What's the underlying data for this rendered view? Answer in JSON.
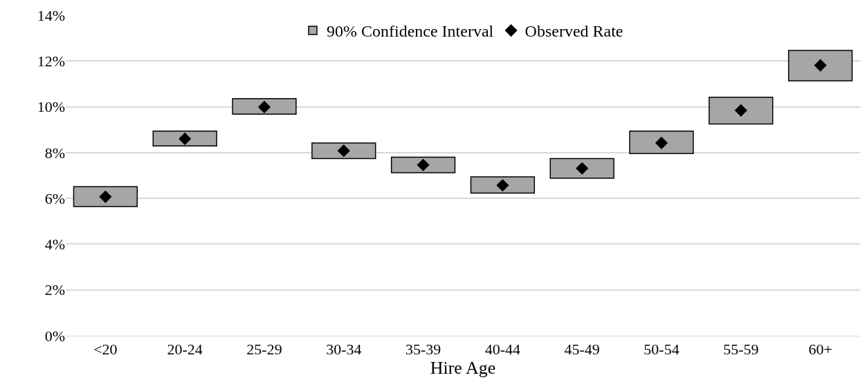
{
  "chart_data": {
    "type": "bar",
    "xlabel": "Hire Age",
    "categories": [
      "<20",
      "20-24",
      "25-29",
      "30-34",
      "35-39",
      "40-44",
      "45-49",
      "50-54",
      "55-59",
      "60+"
    ],
    "series": [
      {
        "name": "90% Confidence Interval",
        "color": "#a6a6a6",
        "base": [
          5.64,
          8.29,
          9.68,
          7.74,
          7.12,
          6.23,
          6.88,
          7.96,
          9.25,
          11.13
        ],
        "values": [
          0.87,
          0.65,
          0.68,
          0.68,
          0.68,
          0.71,
          0.86,
          0.98,
          1.17,
          1.33
        ]
      },
      {
        "name": "Observed Rate",
        "type": "scatter",
        "color": "#000000",
        "marker": "diamond",
        "values": [
          6.07,
          8.6,
          9.99,
          8.08,
          7.46,
          6.57,
          7.31,
          8.42,
          9.84,
          11.81
        ]
      }
    ],
    "ylim": [
      0,
      14
    ],
    "yticks": [
      {
        "value": 0,
        "label": "0%"
      },
      {
        "value": 2,
        "label": "2%"
      },
      {
        "value": 4,
        "label": "4%"
      },
      {
        "value": 6,
        "label": "6%"
      },
      {
        "value": 8,
        "label": "8%"
      },
      {
        "value": 10,
        "label": "10%"
      },
      {
        "value": 12,
        "label": "12%"
      },
      {
        "value": 14,
        "label": "14%"
      }
    ],
    "grid": "y",
    "legend": "top"
  }
}
